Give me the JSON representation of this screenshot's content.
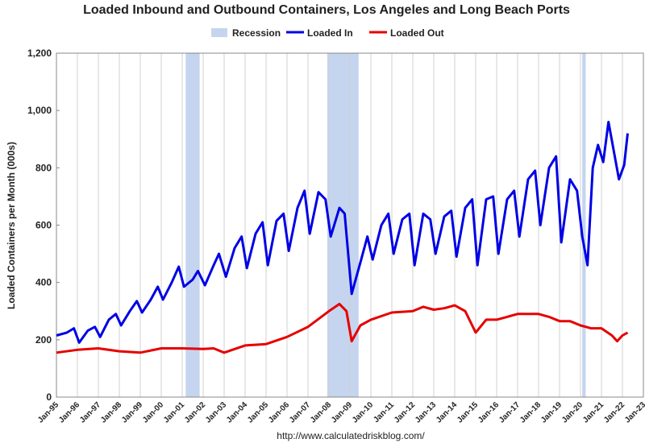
{
  "chart_data": {
    "type": "line",
    "title": "Loaded Inbound and Outbound Containers, Los Angeles and Long Beach Ports",
    "xlabel": "",
    "ylabel": "Loaded Containers per Month (000s)",
    "ylim": [
      0,
      1200
    ],
    "y_ticks": [
      "0",
      "200",
      "400",
      "600",
      "800",
      "1,000",
      "1,200"
    ],
    "x_range": [
      "1995-01",
      "2023-01"
    ],
    "x_ticks": [
      "Jan-95",
      "Jan-96",
      "Jan-97",
      "Jan-98",
      "Jan-99",
      "Jan-00",
      "Jan-01",
      "Jan-02",
      "Jan-03",
      "Jan-04",
      "Jan-05",
      "Jan-06",
      "Jan-07",
      "Jan-08",
      "Jan-09",
      "Jan-10",
      "Jan-11",
      "Jan-12",
      "Jan-13",
      "Jan-14",
      "Jan-15",
      "Jan-16",
      "Jan-17",
      "Jan-18",
      "Jan-19",
      "Jan-20",
      "Jan-21",
      "Jan-22",
      "Jan-23"
    ],
    "grid": "vertical",
    "legend_position": "top-center",
    "recessions": [
      {
        "start": "2001-03",
        "end": "2001-11"
      },
      {
        "start": "2007-12",
        "end": "2009-06"
      },
      {
        "start": "2020-02",
        "end": "2020-04"
      }
    ],
    "series": [
      {
        "name": "Loaded In",
        "color": "#0000e6",
        "points": [
          [
            "1995-01",
            215
          ],
          [
            "1995-07",
            225
          ],
          [
            "1995-11",
            240
          ],
          [
            "1996-02",
            190
          ],
          [
            "1996-07",
            232
          ],
          [
            "1996-11",
            245
          ],
          [
            "1997-02",
            210
          ],
          [
            "1997-07",
            270
          ],
          [
            "1997-11",
            290
          ],
          [
            "1998-02",
            250
          ],
          [
            "1998-07",
            300
          ],
          [
            "1998-11",
            335
          ],
          [
            "1999-02",
            295
          ],
          [
            "1999-07",
            340
          ],
          [
            "1999-11",
            385
          ],
          [
            "2000-02",
            340
          ],
          [
            "2000-07",
            400
          ],
          [
            "2000-11",
            455
          ],
          [
            "2001-02",
            385
          ],
          [
            "2001-07",
            410
          ],
          [
            "2001-10",
            440
          ],
          [
            "2002-02",
            390
          ],
          [
            "2002-07",
            460
          ],
          [
            "2002-10",
            500
          ],
          [
            "2003-02",
            420
          ],
          [
            "2003-07",
            520
          ],
          [
            "2003-11",
            560
          ],
          [
            "2004-02",
            450
          ],
          [
            "2004-07",
            570
          ],
          [
            "2004-11",
            610
          ],
          [
            "2005-02",
            460
          ],
          [
            "2005-07",
            615
          ],
          [
            "2005-11",
            640
          ],
          [
            "2006-02",
            510
          ],
          [
            "2006-07",
            660
          ],
          [
            "2006-11",
            720
          ],
          [
            "2007-02",
            570
          ],
          [
            "2007-07",
            715
          ],
          [
            "2007-11",
            690
          ],
          [
            "2008-02",
            560
          ],
          [
            "2008-07",
            660
          ],
          [
            "2008-10",
            640
          ],
          [
            "2009-02",
            360
          ],
          [
            "2009-07",
            470
          ],
          [
            "2009-11",
            560
          ],
          [
            "2010-02",
            480
          ],
          [
            "2010-07",
            600
          ],
          [
            "2010-11",
            640
          ],
          [
            "2011-02",
            500
          ],
          [
            "2011-07",
            620
          ],
          [
            "2011-11",
            640
          ],
          [
            "2012-02",
            460
          ],
          [
            "2012-07",
            640
          ],
          [
            "2012-11",
            620
          ],
          [
            "2013-02",
            500
          ],
          [
            "2013-07",
            630
          ],
          [
            "2013-11",
            650
          ],
          [
            "2014-02",
            490
          ],
          [
            "2014-07",
            660
          ],
          [
            "2014-11",
            690
          ],
          [
            "2015-02",
            460
          ],
          [
            "2015-07",
            690
          ],
          [
            "2015-11",
            700
          ],
          [
            "2016-02",
            500
          ],
          [
            "2016-07",
            690
          ],
          [
            "2016-11",
            720
          ],
          [
            "2017-02",
            560
          ],
          [
            "2017-07",
            760
          ],
          [
            "2017-11",
            790
          ],
          [
            "2018-02",
            600
          ],
          [
            "2018-07",
            800
          ],
          [
            "2018-11",
            840
          ],
          [
            "2019-02",
            540
          ],
          [
            "2019-07",
            760
          ],
          [
            "2019-11",
            720
          ],
          [
            "2020-02",
            560
          ],
          [
            "2020-05",
            460
          ],
          [
            "2020-08",
            800
          ],
          [
            "2020-11",
            880
          ],
          [
            "2021-02",
            820
          ],
          [
            "2021-05",
            960
          ],
          [
            "2021-08",
            860
          ],
          [
            "2021-11",
            760
          ],
          [
            "2022-02",
            810
          ],
          [
            "2022-04",
            920
          ]
        ]
      },
      {
        "name": "Loaded Out",
        "color": "#e60000",
        "points": [
          [
            "1995-01",
            155
          ],
          [
            "1996-01",
            165
          ],
          [
            "1997-01",
            170
          ],
          [
            "1998-01",
            160
          ],
          [
            "1999-01",
            155
          ],
          [
            "2000-01",
            170
          ],
          [
            "2001-01",
            170
          ],
          [
            "2002-01",
            168
          ],
          [
            "2002-07",
            170
          ],
          [
            "2003-01",
            155
          ],
          [
            "2004-01",
            180
          ],
          [
            "2005-01",
            185
          ],
          [
            "2006-01",
            210
          ],
          [
            "2007-01",
            245
          ],
          [
            "2008-01",
            300
          ],
          [
            "2008-07",
            325
          ],
          [
            "2008-11",
            300
          ],
          [
            "2009-02",
            195
          ],
          [
            "2009-07",
            250
          ],
          [
            "2010-01",
            270
          ],
          [
            "2011-01",
            295
          ],
          [
            "2012-01",
            300
          ],
          [
            "2012-07",
            315
          ],
          [
            "2013-01",
            305
          ],
          [
            "2013-07",
            310
          ],
          [
            "2014-01",
            320
          ],
          [
            "2014-07",
            300
          ],
          [
            "2015-01",
            225
          ],
          [
            "2015-07",
            270
          ],
          [
            "2016-01",
            270
          ],
          [
            "2016-07",
            280
          ],
          [
            "2017-01",
            290
          ],
          [
            "2017-07",
            290
          ],
          [
            "2018-01",
            290
          ],
          [
            "2018-07",
            280
          ],
          [
            "2019-01",
            265
          ],
          [
            "2019-07",
            265
          ],
          [
            "2020-01",
            250
          ],
          [
            "2020-07",
            240
          ],
          [
            "2021-01",
            240
          ],
          [
            "2021-07",
            215
          ],
          [
            "2021-10",
            195
          ],
          [
            "2022-01",
            215
          ],
          [
            "2022-04",
            225
          ]
        ]
      }
    ]
  },
  "legend": {
    "recession_label": "Recession",
    "loaded_in_label": "Loaded In",
    "loaded_out_label": "Loaded Out",
    "recession_color": "#c5d5ef"
  },
  "footer": {
    "url": "http://www.calculatedriskblog.com/"
  }
}
